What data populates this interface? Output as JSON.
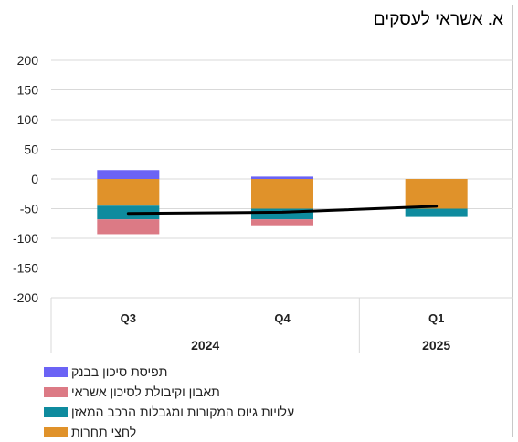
{
  "chart_data": {
    "type": "bar",
    "stacked": true,
    "title": "א. אשראי לעסקים",
    "categories": [
      {
        "quarter": "Q3",
        "year": "2024"
      },
      {
        "quarter": "Q4",
        "year": "2024"
      },
      {
        "quarter": "Q1",
        "year": "2025"
      }
    ],
    "year_groups": [
      {
        "label": "2024",
        "span": 2
      },
      {
        "label": "2025",
        "span": 1
      }
    ],
    "ylim": [
      -200,
      200
    ],
    "yticks": [
      200,
      150,
      100,
      50,
      0,
      -50,
      -100,
      -150,
      -200
    ],
    "grid": true,
    "legend_position": "bottom-left",
    "series": [
      {
        "name": "תפיסת סיכון בבנק",
        "color": "#6b63f5",
        "values": [
          15,
          4,
          0
        ]
      },
      {
        "name": "לחצי תחרות",
        "color": "#e0922a",
        "values": [
          -45,
          -50,
          -50
        ]
      },
      {
        "name": "עלויות גיוס המקורות ומגבלות הרכב המאזן",
        "color": "#0e8b9e",
        "values": [
          -23,
          -18,
          -14
        ]
      },
      {
        "name": "תאבון וקיבולת לסיכון אשראי",
        "color": "#dc7a85",
        "values": [
          -25,
          -10,
          0
        ]
      }
    ],
    "legend_order": [
      0,
      3,
      2,
      1
    ],
    "line": {
      "color": "#000000",
      "values": [
        -58,
        -56,
        -46
      ]
    }
  }
}
